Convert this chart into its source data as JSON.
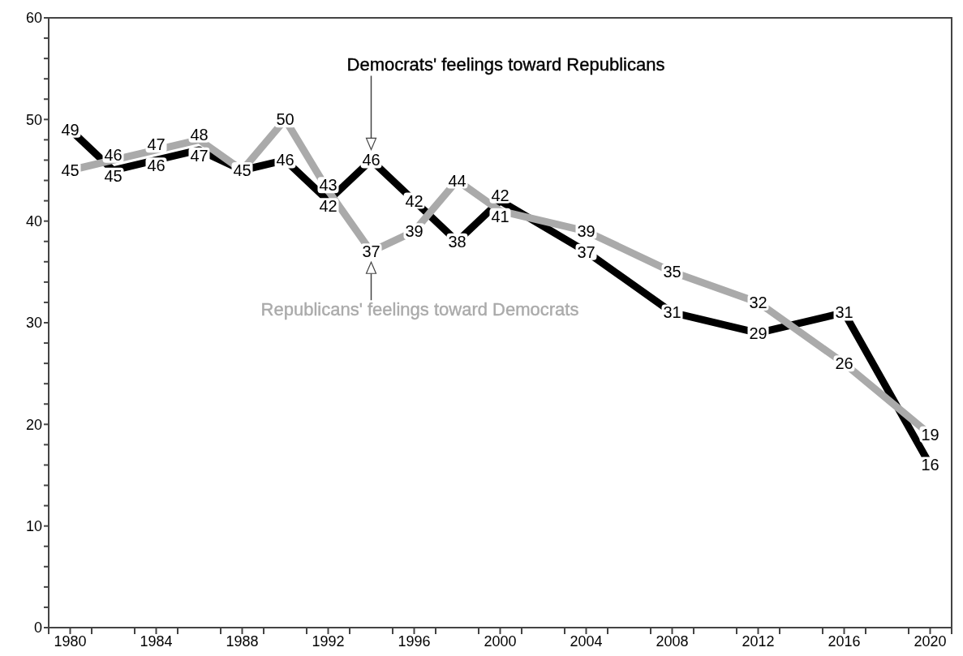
{
  "chart_data": {
    "type": "line",
    "x": [
      1980,
      1982,
      1984,
      1986,
      1988,
      1990,
      1992,
      1994,
      1996,
      1998,
      2000,
      2004,
      2008,
      2012,
      2016,
      2020
    ],
    "series": [
      {
        "name": "Democrats' feelings toward Republicans",
        "color": "#000000",
        "values": [
          49,
          45,
          46,
          47,
          45,
          46,
          42,
          46,
          42,
          38,
          42,
          37,
          31,
          29,
          31,
          16
        ],
        "value_labels": [
          "49",
          "45",
          "46",
          "47",
          null,
          "46",
          "42",
          "46",
          "42",
          "38",
          "42",
          "37",
          "31",
          "29",
          "31",
          "16"
        ]
      },
      {
        "name": "Republicans' feelings toward Democrats",
        "color": "#aaaaaa",
        "values": [
          45,
          46,
          47,
          48,
          45,
          50,
          43,
          37,
          39,
          44,
          41,
          39,
          35,
          32,
          26,
          19
        ],
        "value_labels": [
          "45",
          "46",
          "47",
          "48",
          "45",
          "50",
          "43",
          "37",
          "39",
          "44",
          "41",
          "39",
          "35",
          "32",
          "26",
          "19"
        ]
      }
    ],
    "xlim": [
      1979,
      2021
    ],
    "xticks": [
      {
        "value": 1979,
        "label": null
      },
      1980,
      {
        "value": 1981,
        "label": null
      },
      {
        "value": 1983,
        "label": null
      },
      1984,
      {
        "value": 1985,
        "label": null
      },
      {
        "value": 1987,
        "label": null
      },
      1988,
      {
        "value": 1989,
        "label": null
      },
      {
        "value": 1991,
        "label": null
      },
      1992,
      {
        "value": 1993,
        "label": null
      },
      {
        "value": 1995,
        "label": null
      },
      1996,
      {
        "value": 1997,
        "label": null
      },
      {
        "value": 1999,
        "label": null
      },
      2000,
      {
        "value": 2001,
        "label": null
      },
      {
        "value": 2003,
        "label": null
      },
      2004,
      {
        "value": 2005,
        "label": null
      },
      {
        "value": 2007,
        "label": null
      },
      2008,
      {
        "value": 2009,
        "label": null
      },
      {
        "value": 2011,
        "label": null
      },
      2012,
      {
        "value": 2013,
        "label": null
      },
      {
        "value": 2015,
        "label": null
      },
      2016,
      {
        "value": 2017,
        "label": null
      },
      {
        "value": 2019,
        "label": null
      },
      2020,
      {
        "value": 2021,
        "label": null
      }
    ],
    "ylim": [
      0,
      60
    ],
    "yticks": [
      0,
      {
        "value": 2,
        "label": null
      },
      {
        "value": 4,
        "label": null
      },
      {
        "value": 6,
        "label": null
      },
      {
        "value": 8,
        "label": null
      },
      10,
      {
        "value": 12,
        "label": null
      },
      {
        "value": 14,
        "label": null
      },
      {
        "value": 16,
        "label": null
      },
      {
        "value": 18,
        "label": null
      },
      20,
      {
        "value": 22,
        "label": null
      },
      {
        "value": 24,
        "label": null
      },
      {
        "value": 26,
        "label": null
      },
      {
        "value": 28,
        "label": null
      },
      30,
      {
        "value": 32,
        "label": null
      },
      {
        "value": 34,
        "label": null
      },
      {
        "value": 36,
        "label": null
      },
      {
        "value": 38,
        "label": null
      },
      40,
      {
        "value": 42,
        "label": null
      },
      {
        "value": 44,
        "label": null
      },
      {
        "value": 46,
        "label": null
      },
      {
        "value": 48,
        "label": null
      },
      50,
      {
        "value": 52,
        "label": null
      },
      {
        "value": 54,
        "label": null
      },
      {
        "value": 56,
        "label": null
      },
      {
        "value": 58,
        "label": null
      },
      60
    ],
    "grid": false,
    "legend": false,
    "line_style": "solid"
  }
}
